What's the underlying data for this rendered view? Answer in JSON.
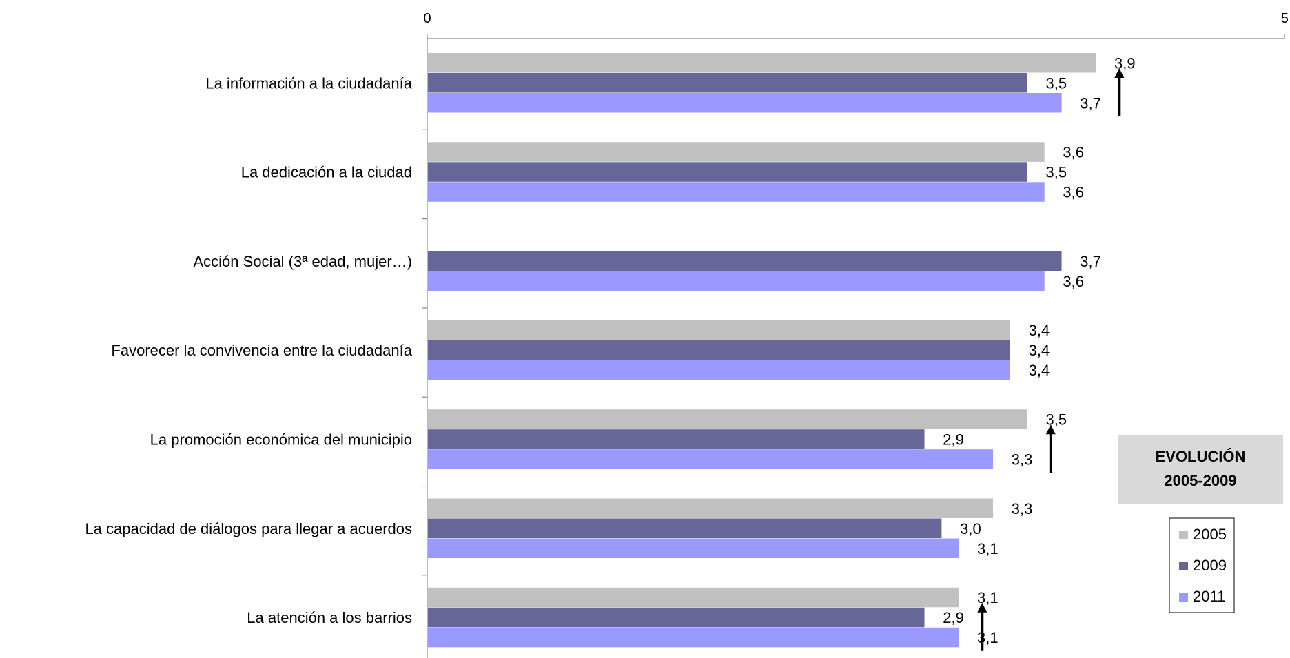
{
  "chart_data": {
    "type": "bar",
    "orientation": "horizontal",
    "xlim": [
      0,
      5
    ],
    "x_ticks": [
      "0",
      "5"
    ],
    "axis_position": "top",
    "grid": false,
    "legend_position": "right",
    "categories": [
      "La información a la ciudadanía",
      "La dedicación a la ciudad",
      "Acción Social (3ª edad, mujer…)",
      "Favorecer la convivencia entre la ciudadanía",
      "La promoción económica del municipio",
      "La capacidad de diálogos para llegar a acuerdos",
      "La atención a los barrios"
    ],
    "series": [
      {
        "name": "2005",
        "color": "#c0c0c0",
        "values": [
          3.9,
          3.6,
          null,
          3.4,
          3.5,
          3.3,
          3.1
        ],
        "labels": [
          "3,9",
          "3,6",
          "",
          "3,4",
          "3,5",
          "3,3",
          "3,1"
        ]
      },
      {
        "name": "2009",
        "color": "#666699",
        "values": [
          3.5,
          3.5,
          3.7,
          3.4,
          2.9,
          3.0,
          2.9
        ],
        "labels": [
          "3,5",
          "3,5",
          "3,7",
          "3,4",
          "2,9",
          "3,0",
          "2,9"
        ]
      },
      {
        "name": "2011",
        "color": "#9999ff",
        "values": [
          3.7,
          3.6,
          3.6,
          3.4,
          3.3,
          3.1,
          3.1
        ],
        "labels": [
          "3,7",
          "3,6",
          "3,6",
          "3,4",
          "3,3",
          "3,1",
          "3,1"
        ]
      }
    ],
    "trend_arrows": [
      {
        "category": "La información a la ciudadanía",
        "direction": "up"
      },
      {
        "category": "La promoción económica del municipio",
        "direction": "up"
      },
      {
        "category": "La atención a los barrios",
        "direction": "up"
      }
    ],
    "evolution_box": {
      "line1": "EVOLUCIÓN",
      "line2": "2005-2009",
      "color": "#d9d9d9"
    }
  }
}
